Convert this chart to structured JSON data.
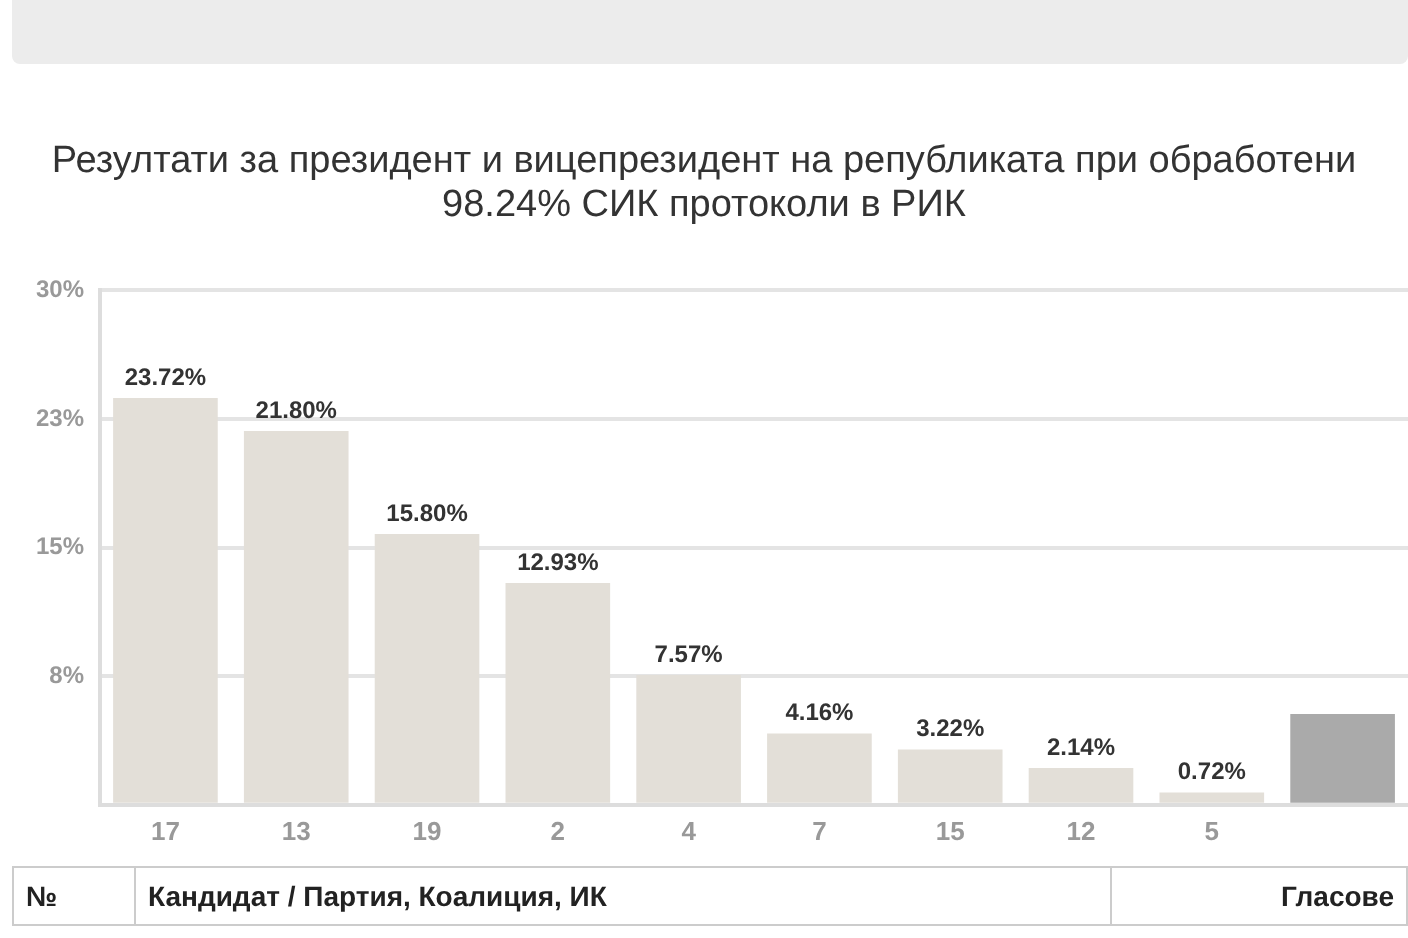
{
  "chart_data": {
    "type": "bar",
    "title": "Резултати за президент и вицепрезидент на републиката при обработени 98.24% СИК протоколи в РИК",
    "categories": [
      "17",
      "13",
      "19",
      "2",
      "4",
      "7",
      "15",
      "12",
      "5",
      null
    ],
    "values": [
      23.72,
      21.8,
      15.8,
      12.93,
      7.57,
      4.16,
      3.22,
      2.14,
      0.72,
      5.3
    ],
    "colors": [
      "#e3dfd8",
      "#e3dfd8",
      "#e3dfd8",
      "#e3dfd8",
      "#e3dfd8",
      "#e3dfd8",
      "#e3dfd8",
      "#e3dfd8",
      "#e3dfd8",
      "#aaaaaa"
    ],
    "value_labels": [
      "23.72%",
      "21.80%",
      "15.80%",
      "12.93%",
      "7.57%",
      "4.16%",
      "3.22%",
      "2.14%",
      "0.72%",
      null
    ],
    "ylim": [
      0,
      30
    ],
    "yticks": [
      {
        "value": 0,
        "label": null
      },
      {
        "value": 7.5,
        "label": "8%"
      },
      {
        "value": 15,
        "label": "15%"
      },
      {
        "value": 22.5,
        "label": "23%"
      },
      {
        "value": 30,
        "label": "30%"
      }
    ],
    "grid": "y",
    "legend": false,
    "annotations": [
      "№",
      "Кандидат / Партия, Коалиция, ИК",
      "Гласове"
    ]
  }
}
